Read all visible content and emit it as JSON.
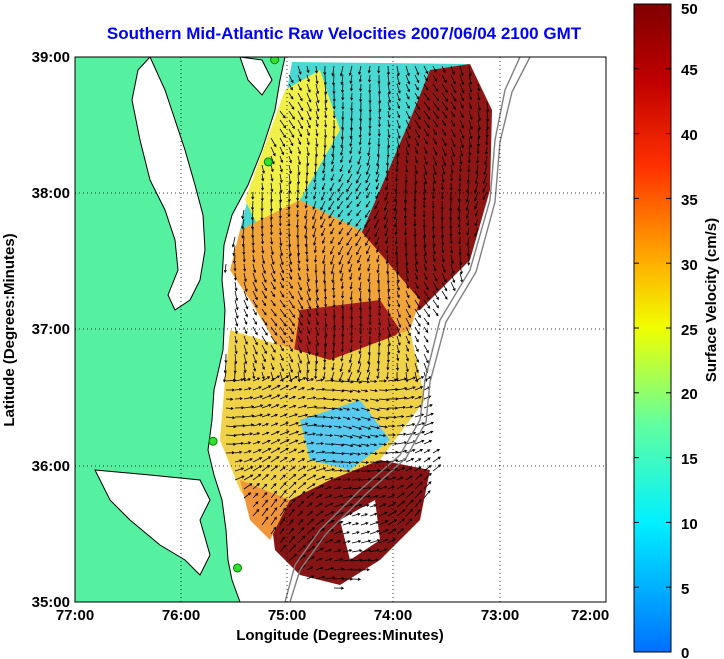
{
  "map": {
    "title": "Southern Mid-Atlantic Raw Velocities 2007/06/04 2100 GMT",
    "xlabel": "Longitude (Degrees:Minutes)",
    "ylabel": "Latitude (Degrees:Minutes)",
    "x_ticks": [
      "77:00",
      "76:00",
      "75:00",
      "74:00",
      "73:00",
      "72:00"
    ],
    "y_ticks": [
      "39:00",
      "38:00",
      "37:00",
      "36:00",
      "35:00"
    ],
    "lon_range": [
      -77,
      -72
    ],
    "lat_range": [
      35,
      39
    ],
    "land_color": "#55f0a0",
    "grid": "dotted"
  },
  "colorbar": {
    "label": "Surface Velocity (cm/s)",
    "range": [
      0,
      50
    ],
    "ticks": [
      "0",
      "5",
      "10",
      "15",
      "20",
      "25",
      "30",
      "35",
      "40",
      "45",
      "50"
    ]
  },
  "stations": [
    {
      "lon": -75.12,
      "lat": 38.98
    },
    {
      "lon": -75.18,
      "lat": 38.23
    },
    {
      "lon": -75.7,
      "lat": 36.18
    },
    {
      "lon": -75.47,
      "lat": 35.25
    }
  ]
}
